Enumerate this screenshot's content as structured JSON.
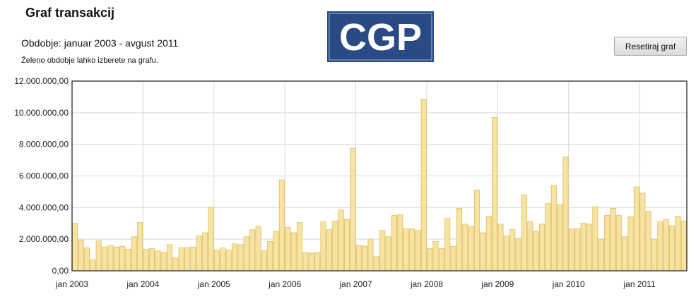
{
  "header": {
    "title": "Graf transakcij",
    "period": "Obdobje: januar 2003 - avgust 2011",
    "hint": "Želeno obdobje lahko izberete na grafu.",
    "logo_text": "CGP",
    "reset_label": "Resetiraj graf"
  },
  "colors": {
    "bar_fill": "#f7e3a3",
    "bar_stroke": "#e2c56a",
    "grid": "#d8d8d8",
    "plot_border": "#444444",
    "logo_bg": "#2a4a85"
  },
  "chart_data": {
    "type": "bar",
    "title": "",
    "xlabel": "",
    "ylabel": "",
    "ylim": [
      0,
      12000000
    ],
    "y_ticks": [
      0,
      2000000,
      4000000,
      6000000,
      8000000,
      10000000,
      12000000
    ],
    "y_tick_labels": [
      "0,00",
      "2.000.000,00",
      "4.000.000,00",
      "6.000.000,00",
      "8.000.000,00",
      "10.000.000,00",
      "12.000.000,00"
    ],
    "x_tick_labels": [
      "jan 2003",
      "jan 2004",
      "jan 2005",
      "jan 2006",
      "jan 2007",
      "jan 2008",
      "jan 2009",
      "jan 2010",
      "jan 2011"
    ],
    "grid": true,
    "start": "2003-01",
    "end": "2011-08",
    "values": [
      3000000,
      1950000,
      1450000,
      700000,
      1900000,
      1500000,
      1600000,
      1500000,
      1550000,
      1350000,
      2150000,
      3050000,
      1350000,
      1400000,
      1250000,
      1150000,
      1650000,
      800000,
      1450000,
      1450000,
      1500000,
      2200000,
      2400000,
      4000000,
      1300000,
      1450000,
      1300000,
      1700000,
      1650000,
      2150000,
      2600000,
      2800000,
      1250000,
      1850000,
      2500000,
      5750000,
      2750000,
      2400000,
      3050000,
      1150000,
      1100000,
      1150000,
      3100000,
      2600000,
      3150000,
      3850000,
      3250000,
      7750000,
      1600000,
      1550000,
      2000000,
      900000,
      2550000,
      2150000,
      3500000,
      3550000,
      2650000,
      2650000,
      2550000,
      10850000,
      1400000,
      1850000,
      1400000,
      3300000,
      1550000,
      3950000,
      2950000,
      2800000,
      5100000,
      2400000,
      3450000,
      9700000,
      2950000,
      2200000,
      2600000,
      2050000,
      4800000,
      3100000,
      2500000,
      2950000,
      4250000,
      5400000,
      4200000,
      7200000,
      2650000,
      2650000,
      3000000,
      2950000,
      4050000,
      2000000,
      3500000,
      3950000,
      3500000,
      2150000,
      3400000,
      5300000,
      4900000,
      3750000,
      2000000,
      3100000,
      3250000,
      2850000,
      3450000,
      3150000
    ]
  }
}
